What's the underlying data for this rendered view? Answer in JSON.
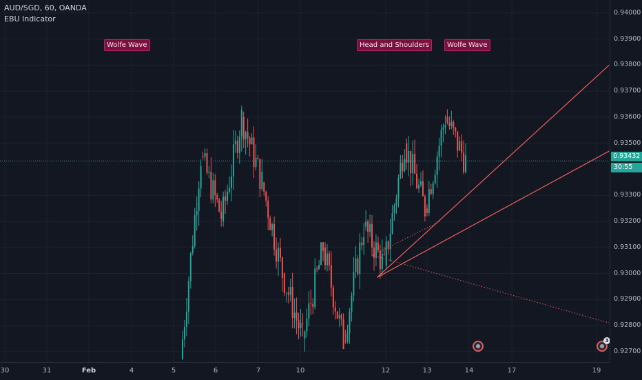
{
  "legend": {
    "symbol": "AUD/SGD, 60, OANDA",
    "indicator": "EBU Indicator"
  },
  "patterns": [
    {
      "id": "wolfe1",
      "label": "Wolfe Wave"
    },
    {
      "id": "hs",
      "label": "Head and Shoulders"
    },
    {
      "id": "wolfe2",
      "label": "Wolfe Wave"
    }
  ],
  "price_axis": {
    "ticks": [
      "0.94000",
      "0.93900",
      "0.93800",
      "0.93700",
      "0.93600",
      "0.93500",
      "0.93300",
      "0.93200",
      "0.93100",
      "0.93000",
      "0.92900",
      "0.92800",
      "0.92700"
    ],
    "current_price": "0.93432",
    "countdown": "30:55"
  },
  "time_axis": {
    "ticks": [
      "30",
      "31",
      "Feb",
      "4",
      "5",
      "6",
      "7",
      "10",
      "12",
      "13",
      "14",
      "17",
      "19"
    ]
  },
  "events": {
    "badge_count": "3"
  },
  "colors": {
    "up": "#26a69a",
    "down": "#ef5350",
    "line": "#e05a5a",
    "bg": "#131722",
    "grid": "#1e222d"
  },
  "chart_data": {
    "type": "candlestick",
    "title": "AUD/SGD, 60, OANDA",
    "ylim": [
      0.9266,
      0.9405
    ],
    "price_line": 0.93432,
    "segments": [
      {
        "from_day": "5",
        "start": 0.9267,
        "end": 0.9345,
        "high": 0.9348,
        "low": 0.9267
      },
      {
        "from_day": "5",
        "start": 0.9345,
        "end": 0.9322,
        "high": 0.9348,
        "low": 0.9318
      },
      {
        "from_day": "6",
        "start": 0.932,
        "end": 0.936,
        "high": 0.9365,
        "low": 0.9318
      },
      {
        "from_day": "6",
        "start": 0.936,
        "end": 0.9335,
        "high": 0.9366,
        "low": 0.9325
      },
      {
        "from_day": "7",
        "start": 0.9335,
        "end": 0.93,
        "high": 0.934,
        "low": 0.9292
      },
      {
        "from_day": "7",
        "start": 0.93,
        "end": 0.9275,
        "high": 0.932,
        "low": 0.9272
      },
      {
        "from_day": "10",
        "start": 0.9275,
        "end": 0.931,
        "high": 0.9312,
        "low": 0.927
      },
      {
        "from_day": "10",
        "start": 0.931,
        "end": 0.9274,
        "high": 0.9312,
        "low": 0.9271
      },
      {
        "from_day": "11",
        "start": 0.9274,
        "end": 0.9318,
        "high": 0.9322,
        "low": 0.9273
      },
      {
        "from_day": "11",
        "start": 0.9318,
        "end": 0.9303,
        "high": 0.9325,
        "low": 0.9298
      },
      {
        "from_day": "12",
        "start": 0.9303,
        "end": 0.935,
        "high": 0.9354,
        "low": 0.9298
      },
      {
        "from_day": "12",
        "start": 0.935,
        "end": 0.9325,
        "high": 0.9354,
        "low": 0.9318
      },
      {
        "from_day": "13",
        "start": 0.9325,
        "end": 0.936,
        "high": 0.9365,
        "low": 0.9322
      },
      {
        "from_day": "13",
        "start": 0.936,
        "end": 0.9343,
        "high": 0.9363,
        "low": 0.9338
      }
    ],
    "drawings": [
      {
        "type": "line",
        "from": {
          "day": "11.8",
          "price": 0.92985
        },
        "to": {
          "day": "19.3",
          "price": 0.938
        }
      },
      {
        "type": "line",
        "from": {
          "day": "11.8",
          "price": 0.92985
        },
        "to": {
          "day": "19.3",
          "price": 0.9347
        }
      },
      {
        "type": "dotted",
        "from": {
          "day": "11.7",
          "price": 0.9307
        },
        "to": {
          "day": "19.3",
          "price": 0.9281
        }
      },
      {
        "type": "dotted",
        "from": {
          "day": "11.7",
          "price": 0.9307
        },
        "to": {
          "day": "13.3",
          "price": 0.932
        }
      }
    ]
  }
}
